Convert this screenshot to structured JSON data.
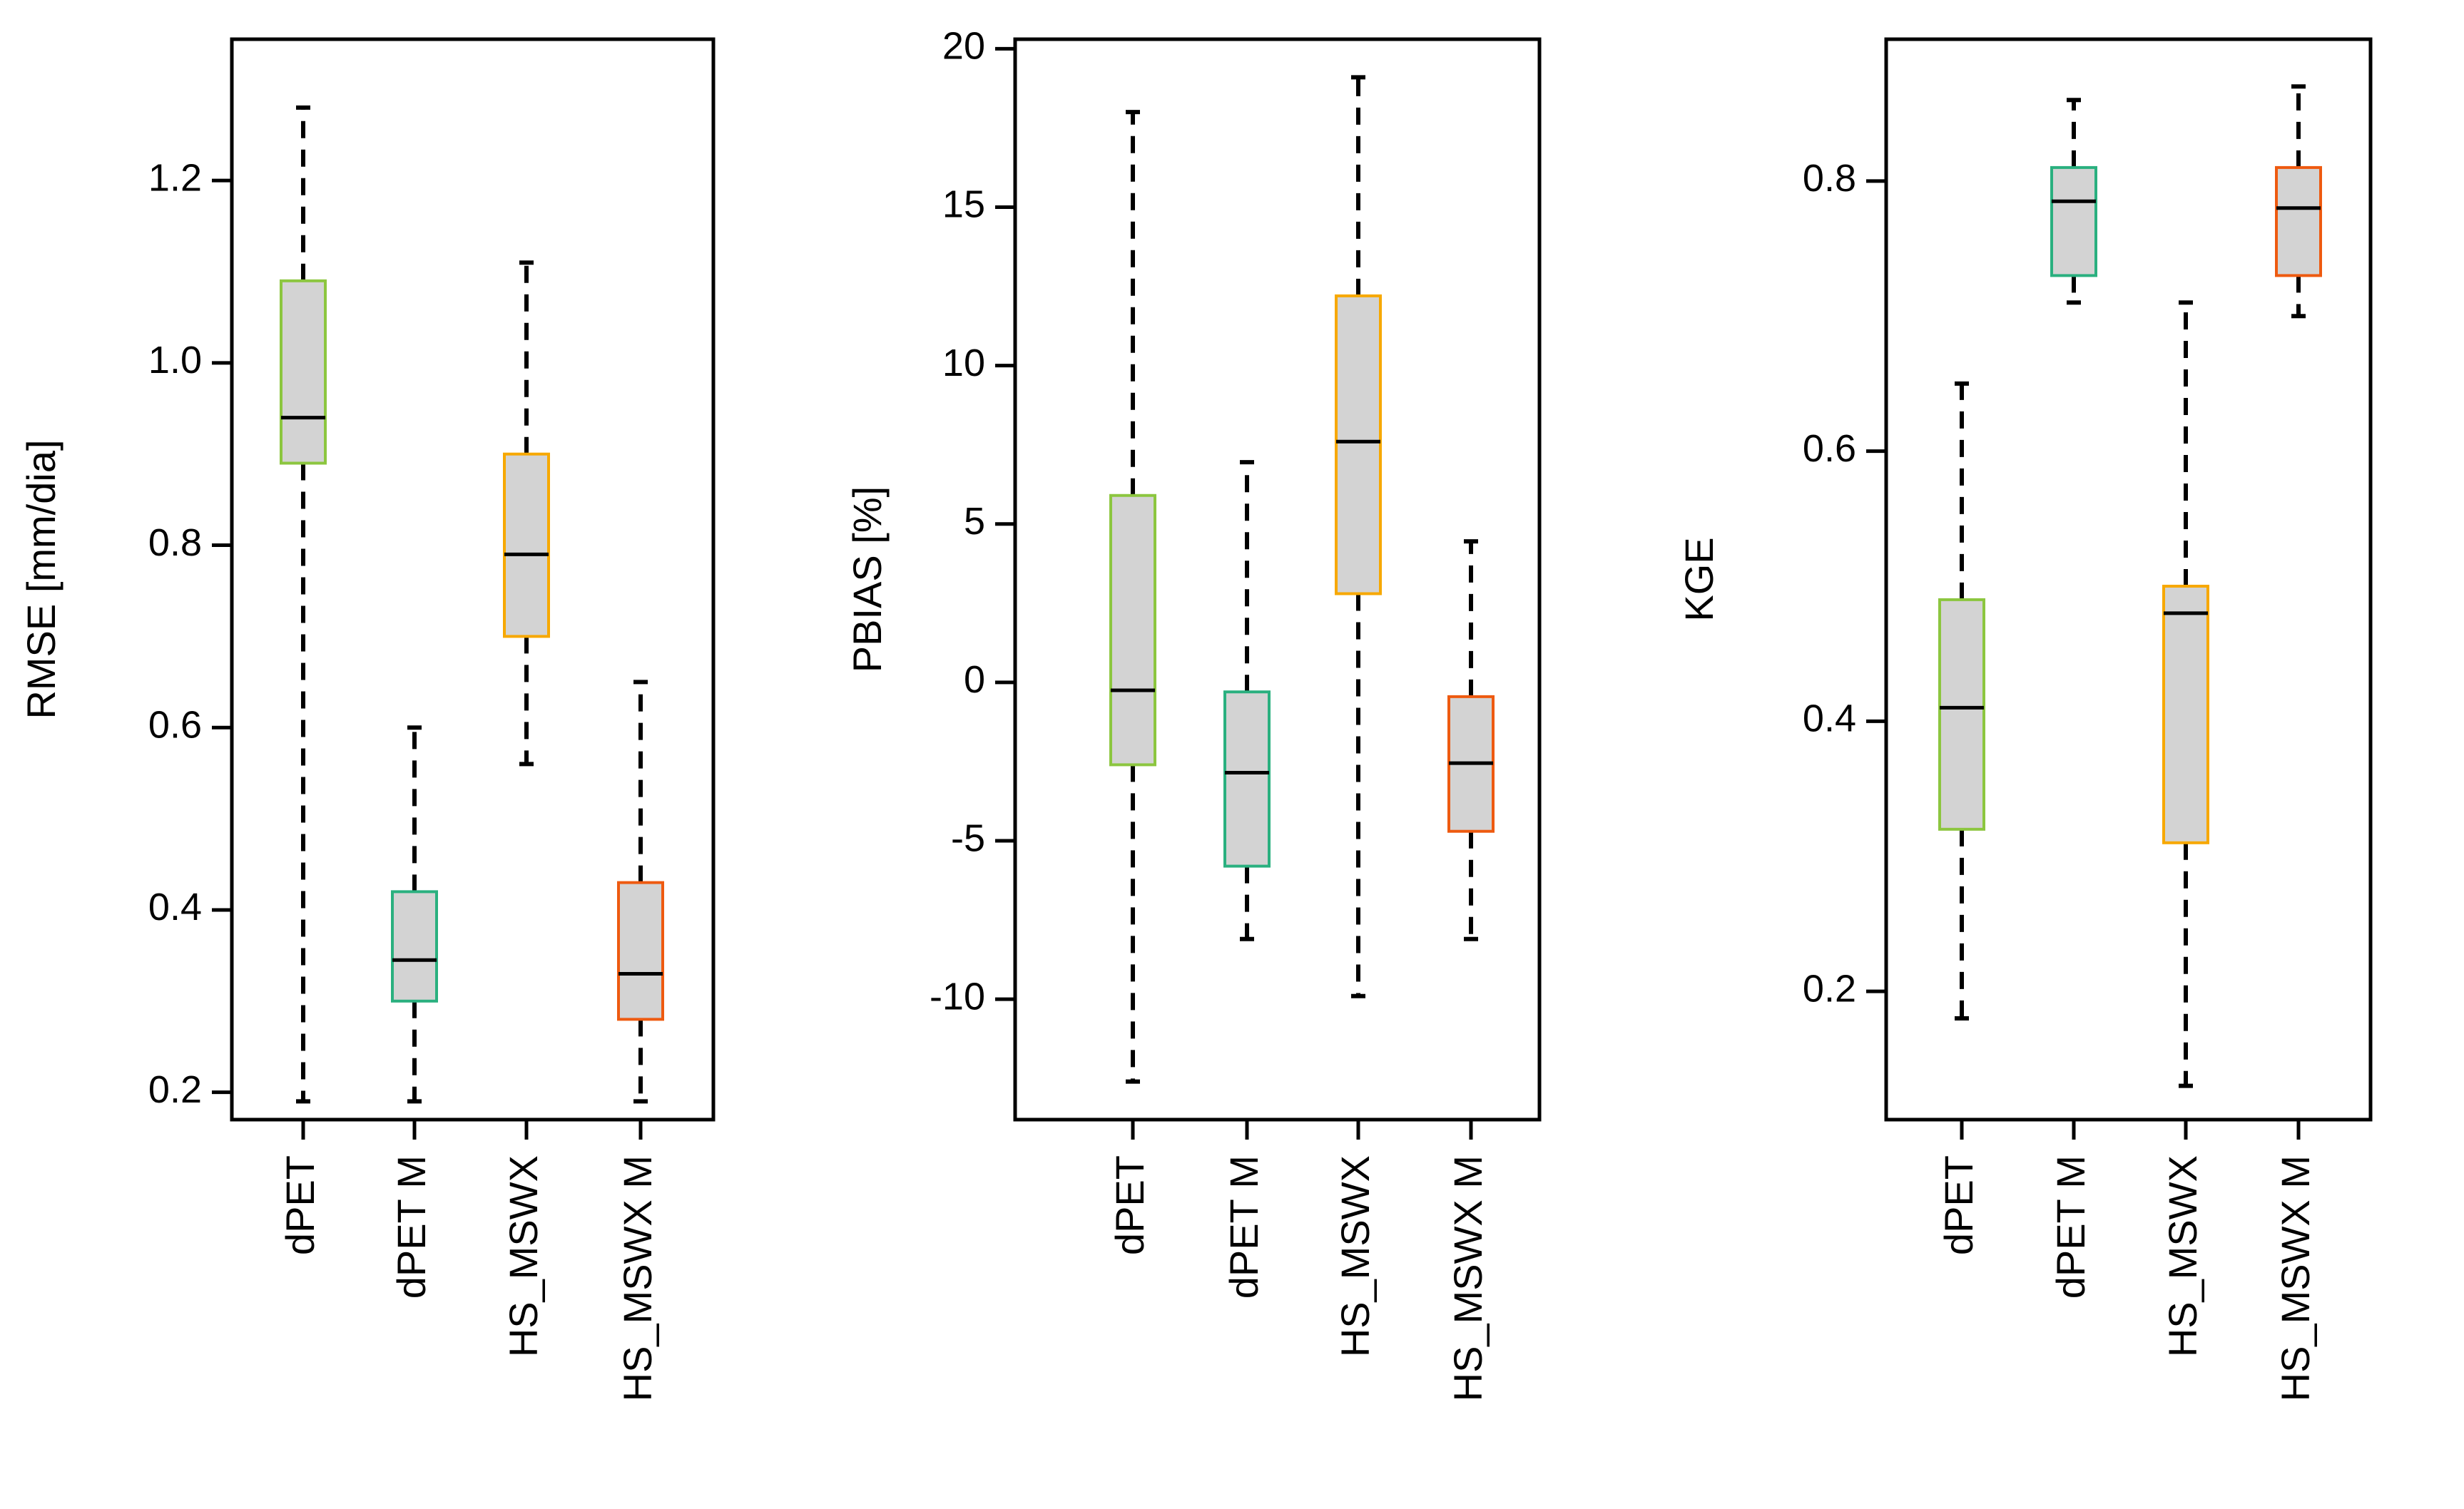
{
  "chart_data": [
    {
      "type": "boxplot",
      "ylabel": "RMSE [mm/dia]",
      "ylim": [
        0.17,
        1.355
      ],
      "yticks": [
        "0.2",
        "0.4",
        "0.6",
        "0.8",
        "1.0",
        "1.2"
      ],
      "categories": [
        "dPET",
        "dPET M",
        "HS_MSWX",
        "HS_MSWX M"
      ],
      "boxes": [
        {
          "whisker_low": 0.19,
          "q1": 0.89,
          "median": 0.94,
          "q3": 1.09,
          "whisker_high": 1.28
        },
        {
          "whisker_low": 0.19,
          "q1": 0.3,
          "median": 0.345,
          "q3": 0.42,
          "whisker_high": 0.6
        },
        {
          "whisker_low": 0.56,
          "q1": 0.7,
          "median": 0.79,
          "q3": 0.9,
          "whisker_high": 1.11
        },
        {
          "whisker_low": 0.19,
          "q1": 0.28,
          "median": 0.33,
          "q3": 0.43,
          "whisker_high": 0.65
        }
      ]
    },
    {
      "type": "boxplot",
      "ylabel": "PBIAS [%]",
      "ylim": [
        -13.8,
        20.3
      ],
      "yticks": [
        "-10",
        "-5",
        "0",
        "5",
        "10",
        "15",
        "20"
      ],
      "categories": [
        "dPET",
        "dPET M",
        "HS_MSWX",
        "HS_MSWX M"
      ],
      "boxes": [
        {
          "whisker_low": -12.6,
          "q1": -2.6,
          "median": -0.25,
          "q3": 5.9,
          "whisker_high": 18.0
        },
        {
          "whisker_low": -8.1,
          "q1": -5.8,
          "median": -2.85,
          "q3": -0.3,
          "whisker_high": 6.95
        },
        {
          "whisker_low": -9.9,
          "q1": 2.8,
          "median": 7.6,
          "q3": 12.2,
          "whisker_high": 19.1
        },
        {
          "whisker_low": -8.1,
          "q1": -4.7,
          "median": -2.55,
          "q3": -0.45,
          "whisker_high": 4.45
        }
      ]
    },
    {
      "type": "boxplot",
      "ylabel": "KGE",
      "ylim": [
        0.105,
        0.905
      ],
      "yticks": [
        "0.2",
        "0.4",
        "0.6",
        "0.8"
      ],
      "categories": [
        "dPET",
        "dPET M",
        "HS_MSWX",
        "HS_MSWX M"
      ],
      "boxes": [
        {
          "whisker_low": 0.18,
          "q1": 0.32,
          "median": 0.41,
          "q3": 0.49,
          "whisker_high": 0.65
        },
        {
          "whisker_low": 0.71,
          "q1": 0.73,
          "median": 0.785,
          "q3": 0.81,
          "whisker_high": 0.86
        },
        {
          "whisker_low": 0.13,
          "q1": 0.31,
          "median": 0.48,
          "q3": 0.5,
          "whisker_high": 0.71
        },
        {
          "whisker_low": 0.7,
          "q1": 0.73,
          "median": 0.78,
          "q3": 0.81,
          "whisker_high": 0.87
        }
      ]
    }
  ],
  "style": {
    "box_fill": "#d3d3d3",
    "box_borders": [
      "#8cc63f",
      "#2ab07f",
      "#f7a800",
      "#ee5a10"
    ],
    "line_color": "#000000",
    "background": "#ffffff"
  }
}
